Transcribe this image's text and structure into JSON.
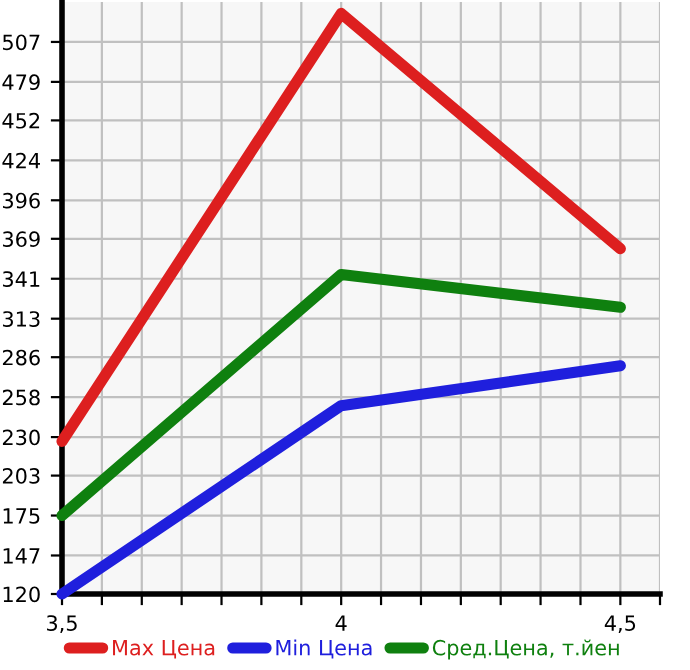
{
  "chart_data": {
    "type": "line",
    "x": [
      3.5,
      4,
      4.5
    ],
    "series": [
      {
        "name": "Max Цена",
        "color": "#dd1f1f",
        "values": [
          227,
          527,
          362
        ]
      },
      {
        "name": "Min Цена",
        "color": "#1f1fdd",
        "values": [
          120,
          252,
          280
        ]
      },
      {
        "name": "Сред.Цена, т.йен",
        "color": "#0f800f",
        "values": [
          175,
          344,
          321
        ]
      }
    ],
    "xlim": [
      3.5,
      4.571
    ],
    "xticks": [
      {
        "value": 3.5,
        "label": "3,5"
      },
      {
        "value": 3.5714,
        "label": null
      },
      {
        "value": 3.6429,
        "label": null
      },
      {
        "value": 3.7143,
        "label": null
      },
      {
        "value": 3.7857,
        "label": null
      },
      {
        "value": 3.8571,
        "label": null
      },
      {
        "value": 3.9286,
        "label": null
      },
      {
        "value": 4,
        "label": "4"
      },
      {
        "value": 4.0714,
        "label": null
      },
      {
        "value": 4.1429,
        "label": null
      },
      {
        "value": 4.2143,
        "label": null
      },
      {
        "value": 4.2857,
        "label": null
      },
      {
        "value": 4.3571,
        "label": null
      },
      {
        "value": 4.4286,
        "label": null
      },
      {
        "value": 4.5,
        "label": "4,5"
      },
      {
        "value": 4.571,
        "label": null
      }
    ],
    "ylim": [
      120,
      535
    ],
    "yticks": [
      120,
      147,
      175,
      203,
      230,
      258,
      286,
      313,
      341,
      369,
      396,
      424,
      452,
      479,
      507
    ],
    "grid": true,
    "legend": "bottom",
    "marker": "none",
    "line_style": "solid"
  }
}
